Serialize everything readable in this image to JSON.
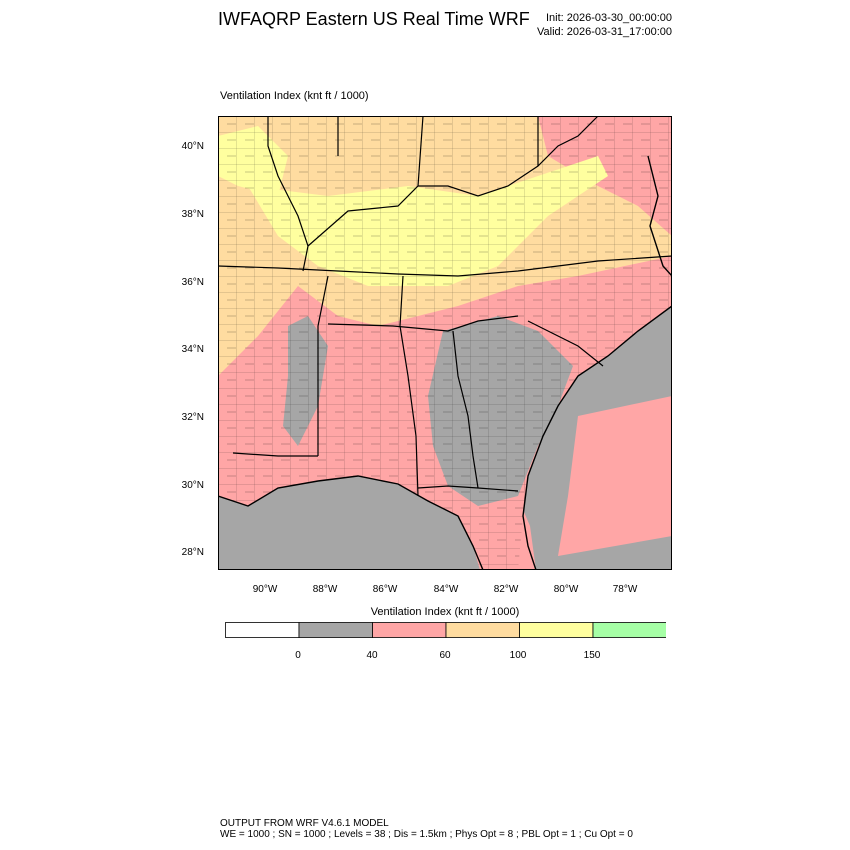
{
  "header": {
    "title": "IWFAQRP Eastern US Real Time WRF",
    "init": "Init: 2026-03-30_00:00:00",
    "valid": "Valid: 2026-03-31_17:00:00"
  },
  "map": {
    "field_label": "Ventilation Index   (knt ft / 1000)",
    "lat_labels": [
      "40°N",
      "38°N",
      "36°N",
      "34°N",
      "32°N",
      "30°N",
      "28°N"
    ],
    "lon_labels": [
      "90°W",
      "88°W",
      "86°W",
      "84°W",
      "82°W",
      "80°W",
      "78°W"
    ],
    "colors": {
      "water": "#a6a6a6",
      "below_40": "#a6a6a6",
      "c40_60": "#ffa6a6",
      "c60_100": "#ffdca0",
      "c100_150": "#ffff9f",
      "above_150": "#a6ffa6"
    }
  },
  "colorbar": {
    "title": "Ventilation Index  (knt ft / 1000)",
    "colors": [
      "#ffffff",
      "#a6a6a6",
      "#ffa6a6",
      "#ffdca0",
      "#ffff9f",
      "#a6ffa6"
    ],
    "labels": [
      "0",
      "40",
      "60",
      "100",
      "150"
    ]
  },
  "footer": {
    "line1": "OUTPUT FROM WRF V4.6.1 MODEL",
    "line2": "WE = 1000 ; SN = 1000 ; Levels = 38 ; Dis = 1.5km ; Phys Opt = 8 ; PBL Opt = 1 ; Cu Opt = 0"
  }
}
